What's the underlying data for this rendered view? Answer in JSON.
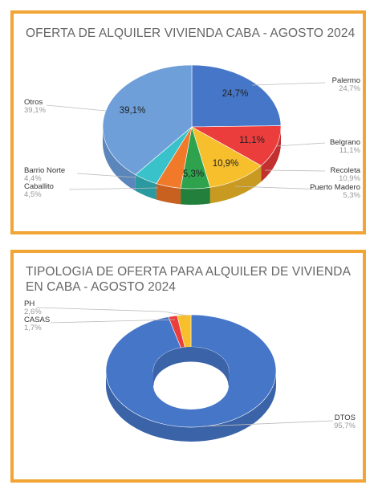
{
  "chart_data": [
    {
      "type": "pie",
      "title": "OFERTA DE ALQUILER VIVIENDA CABA - AGOSTO 2024",
      "slices": [
        {
          "label": "Palermo",
          "value": 24.7,
          "value_label": "24,7%",
          "legend_value": "24,7%",
          "color": "#4676c8",
          "side": "#3a63a8"
        },
        {
          "label": "Belgrano",
          "value": 11.1,
          "value_label": "11,1%",
          "legend_value": "11,1%",
          "color": "#ec3d3d",
          "side": "#c23030"
        },
        {
          "label": "Recoleta",
          "value": 10.9,
          "value_label": "10,9%",
          "legend_value": "10,9%",
          "color": "#f7bf2c",
          "side": "#c99a22"
        },
        {
          "label": "Puerto Madero",
          "value": 5.3,
          "value_label": "5,3%",
          "legend_value": "5,3%",
          "color": "#2fa24e",
          "side": "#23803c"
        },
        {
          "label": "Caballito",
          "value": 4.5,
          "value_label": "",
          "legend_value": "4,5%",
          "color": "#f07a2a",
          "side": "#c86020"
        },
        {
          "label": "Barrio Norte",
          "value": 4.4,
          "value_label": "",
          "legend_value": "4,4%",
          "color": "#39c2c9",
          "side": "#2b9aa0"
        },
        {
          "label": "Otros",
          "value": 39.1,
          "value_label": "39,1%",
          "legend_value": "39,1%",
          "color": "#6f9fd8",
          "side": "#5a86bb"
        }
      ]
    },
    {
      "type": "pie",
      "title": "TIPOLOGIA DE OFERTA PARA ALQUILER DE VIVIENDA EN CABA - AGOSTO 2024",
      "donut": true,
      "slices": [
        {
          "label": "DTOS",
          "value": 95.7,
          "legend_value": "95,7%",
          "color": "#4676c8",
          "side": "#3a63a8"
        },
        {
          "label": "CASAS",
          "value": 1.7,
          "legend_value": "1,7%",
          "color": "#ec3d3d",
          "side": "#c23030"
        },
        {
          "label": "PH",
          "value": 2.6,
          "legend_value": "2,6%",
          "color": "#f7bf2c",
          "side": "#c99a22"
        }
      ]
    }
  ]
}
